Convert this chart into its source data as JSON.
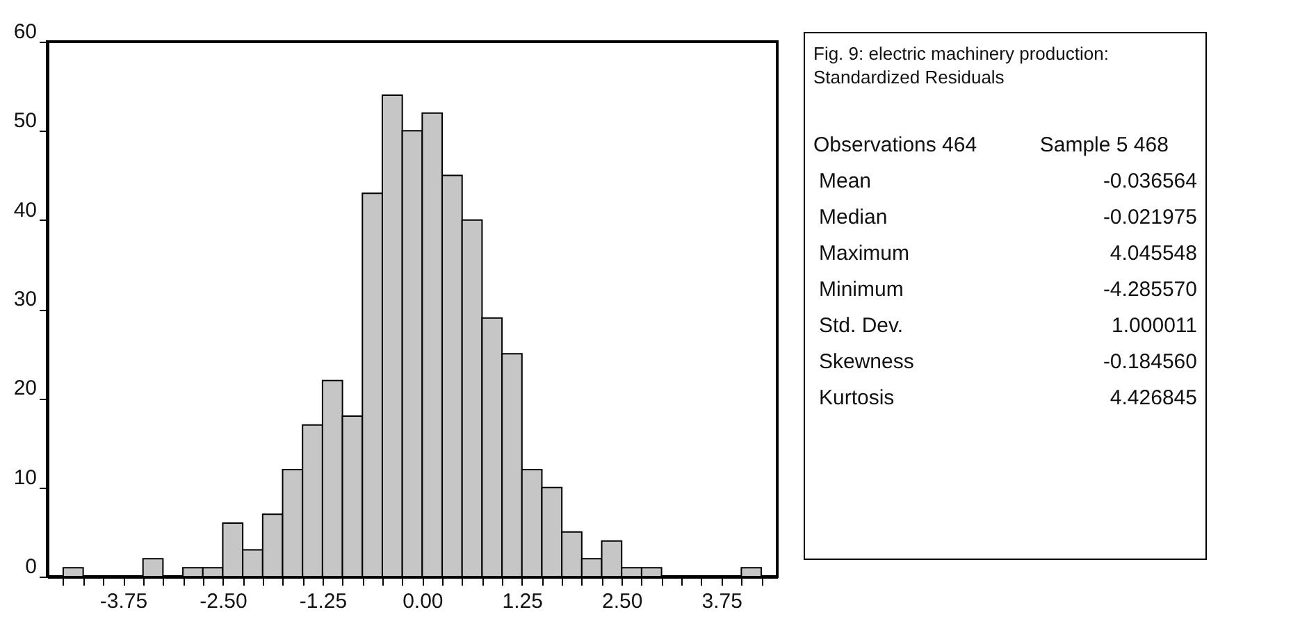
{
  "chart_data": [
    {
      "type": "histogram",
      "bins": [
        -4.5,
        -4.25,
        -4.0,
        -3.75,
        -3.5,
        -3.25,
        -3.0,
        -2.75,
        -2.5,
        -2.25,
        -2.0,
        -1.75,
        -1.5,
        -1.25,
        -1.0,
        -0.75,
        -0.5,
        -0.25,
        0.0,
        0.25,
        0.5,
        0.75,
        1.0,
        1.25,
        1.5,
        1.75,
        2.0,
        2.25,
        2.5,
        2.75,
        3.0,
        3.25,
        3.5,
        3.75,
        4.0,
        4.25
      ],
      "values": [
        1,
        0,
        0,
        0,
        2,
        0,
        1,
        1,
        6,
        3,
        7,
        12,
        17,
        22,
        18,
        43,
        54,
        50,
        52,
        45,
        40,
        29,
        25,
        12,
        10,
        5,
        2,
        4,
        1,
        1,
        0,
        0,
        0,
        0,
        1
      ],
      "color": "#c6c6c6",
      "xlim": [
        -4.7,
        4.45
      ],
      "xticks": [
        {
          "value": -4.5,
          "label": null
        },
        {
          "value": -4.25,
          "label": null
        },
        {
          "value": -4.0,
          "label": null
        },
        {
          "value": -3.75,
          "label": "-3.75"
        },
        {
          "value": -3.5,
          "label": null
        },
        {
          "value": -3.25,
          "label": null
        },
        {
          "value": -3.0,
          "label": null
        },
        {
          "value": -2.75,
          "label": null
        },
        {
          "value": -2.5,
          "label": "-2.50"
        },
        {
          "value": -2.25,
          "label": null
        },
        {
          "value": -2.0,
          "label": null
        },
        {
          "value": -1.75,
          "label": null
        },
        {
          "value": -1.5,
          "label": null
        },
        {
          "value": -1.25,
          "label": "-1.25"
        },
        {
          "value": -1.0,
          "label": null
        },
        {
          "value": -0.75,
          "label": null
        },
        {
          "value": -0.5,
          "label": null
        },
        {
          "value": -0.25,
          "label": null
        },
        {
          "value": 0,
          "label": "0.00"
        },
        {
          "value": 0.25,
          "label": null
        },
        {
          "value": 0.5,
          "label": null
        },
        {
          "value": 0.75,
          "label": null
        },
        {
          "value": 1.0,
          "label": null
        },
        {
          "value": 1.25,
          "label": "1.25"
        },
        {
          "value": 1.5,
          "label": null
        },
        {
          "value": 1.75,
          "label": null
        },
        {
          "value": 2.0,
          "label": null
        },
        {
          "value": 2.25,
          "label": null
        },
        {
          "value": 2.5,
          "label": "2.50"
        },
        {
          "value": 2.75,
          "label": null
        },
        {
          "value": 3.0,
          "label": null
        },
        {
          "value": 3.25,
          "label": null
        },
        {
          "value": 3.5,
          "label": null
        },
        {
          "value": 3.75,
          "label": "3.75"
        },
        {
          "value": 4.0,
          "label": null
        },
        {
          "value": 4.25,
          "label": null
        }
      ],
      "ylim": [
        0,
        60
      ],
      "yticks": [
        0,
        10,
        20,
        30,
        40,
        50,
        60
      ]
    },
    {
      "type": "other",
      "title": "Fig. 9: electric machinery production:",
      "subtitle": "Standardized Residuals",
      "annotations": [
        "Observations 464",
        "Sample 5 468",
        "Mean",
        "-0.036564",
        "Median",
        "-0.021975",
        "Maximum",
        "4.045548",
        "Minimum",
        "-4.285570",
        "Std. Dev.",
        "1.000011",
        "Skewness",
        "-0.184560",
        "Kurtosis",
        "4.426845"
      ]
    }
  ]
}
